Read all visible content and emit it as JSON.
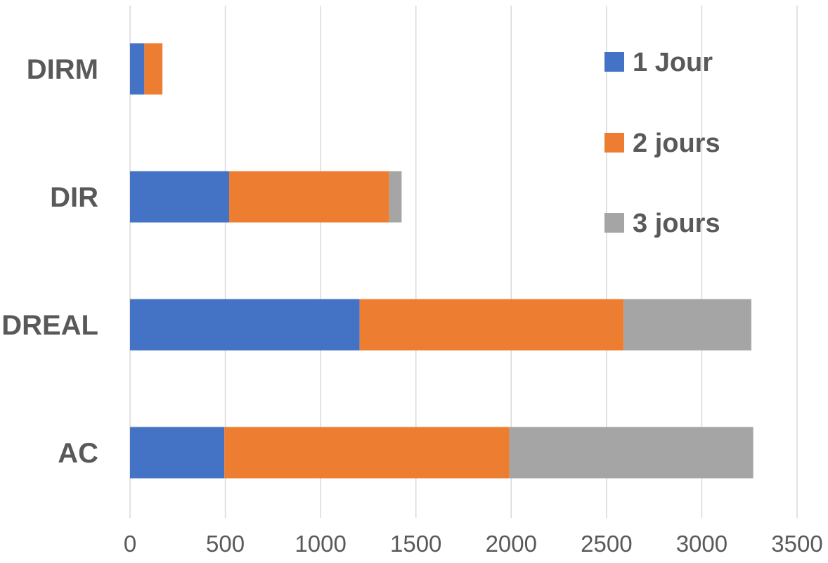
{
  "chart_data": {
    "type": "bar",
    "orientation": "horizontal",
    "stacked": true,
    "title": "",
    "xlabel": "",
    "ylabel": "",
    "categories": [
      "DIRM",
      "DIR",
      "DREAL",
      "AC"
    ],
    "series": [
      {
        "name": "1 Jour",
        "color": "#4472C4",
        "values": [
          75,
          520,
          1205,
          495
        ]
      },
      {
        "name": "2 jours",
        "color": "#ED7D31",
        "values": [
          95,
          840,
          1385,
          1495
        ]
      },
      {
        "name": "3 jours",
        "color": "#A5A5A5",
        "values": [
          0,
          65,
          670,
          1280
        ]
      }
    ],
    "xlim": [
      0,
      3500
    ],
    "xticks": [
      "0",
      "500",
      "1000",
      "1500",
      "2000",
      "2500",
      "3000",
      "3500"
    ],
    "grid": "vertical",
    "legend": "top-right"
  }
}
